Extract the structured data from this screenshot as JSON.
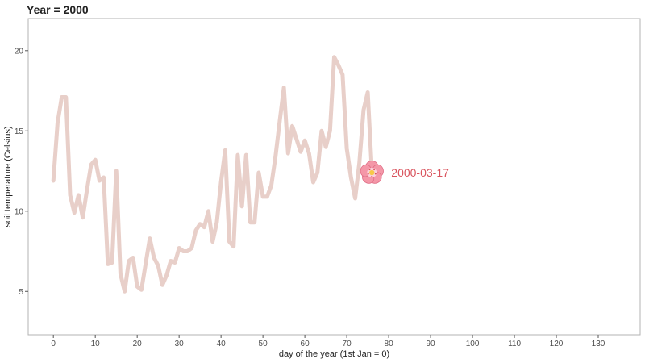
{
  "chart_data": {
    "type": "line",
    "title": "Year = 2000",
    "xlabel": "day of the year (1st Jan = 0)",
    "ylabel": "soil temperature (Celsius)",
    "xlim": [
      -6,
      140
    ],
    "ylim": [
      2.3,
      22
    ],
    "xticks": [
      0,
      10,
      20,
      30,
      40,
      50,
      60,
      70,
      80,
      90,
      100,
      110,
      120,
      130
    ],
    "yticks": [
      5,
      10,
      15,
      20
    ],
    "grid": false,
    "line_color": "#e8cfc9",
    "marker_icon": "cherry-blossom-icon",
    "annotation": {
      "text": "2000-03-17",
      "x": 76,
      "y": 12.4,
      "color": "#d9545e"
    },
    "series": [
      {
        "x": [
          0,
          1,
          2,
          3,
          4,
          5,
          6,
          7,
          8,
          9,
          10,
          11,
          12,
          13,
          14,
          15,
          16,
          17,
          18,
          19,
          20,
          21,
          22,
          23,
          24,
          25,
          26,
          27,
          28,
          29,
          30,
          31,
          32,
          33,
          34,
          35,
          36,
          37,
          38,
          39,
          40,
          41,
          42,
          43,
          44,
          45,
          46,
          47,
          48,
          49,
          50,
          51,
          52,
          53,
          54,
          55,
          56,
          57,
          58,
          59,
          60,
          61,
          62,
          63,
          64,
          65,
          66,
          67,
          68,
          69,
          70,
          71,
          72,
          73,
          74,
          75,
          76
        ],
        "values": [
          11.9,
          15.5,
          17.1,
          17.1,
          11.0,
          9.9,
          11.0,
          9.6,
          11.3,
          12.9,
          13.2,
          11.9,
          12.1,
          6.7,
          6.8,
          12.5,
          6.1,
          5.0,
          6.9,
          7.1,
          5.3,
          5.1,
          6.7,
          8.3,
          7.1,
          6.6,
          5.4,
          6.0,
          6.9,
          6.8,
          7.7,
          7.5,
          7.5,
          7.7,
          8.8,
          9.2,
          9.0,
          10.0,
          8.1,
          9.3,
          11.8,
          13.8,
          8.1,
          7.8,
          13.5,
          10.3,
          13.5,
          9.3,
          9.3,
          12.4,
          10.9,
          10.9,
          11.6,
          13.4,
          15.6,
          17.7,
          13.6,
          15.3,
          14.5,
          13.7,
          14.4,
          13.6,
          11.8,
          12.4,
          15.0,
          14.0,
          15.0,
          19.6,
          19.1,
          18.5,
          13.9,
          12.1,
          10.8,
          13.0,
          16.3,
          17.4,
          12.4
        ]
      }
    ]
  }
}
